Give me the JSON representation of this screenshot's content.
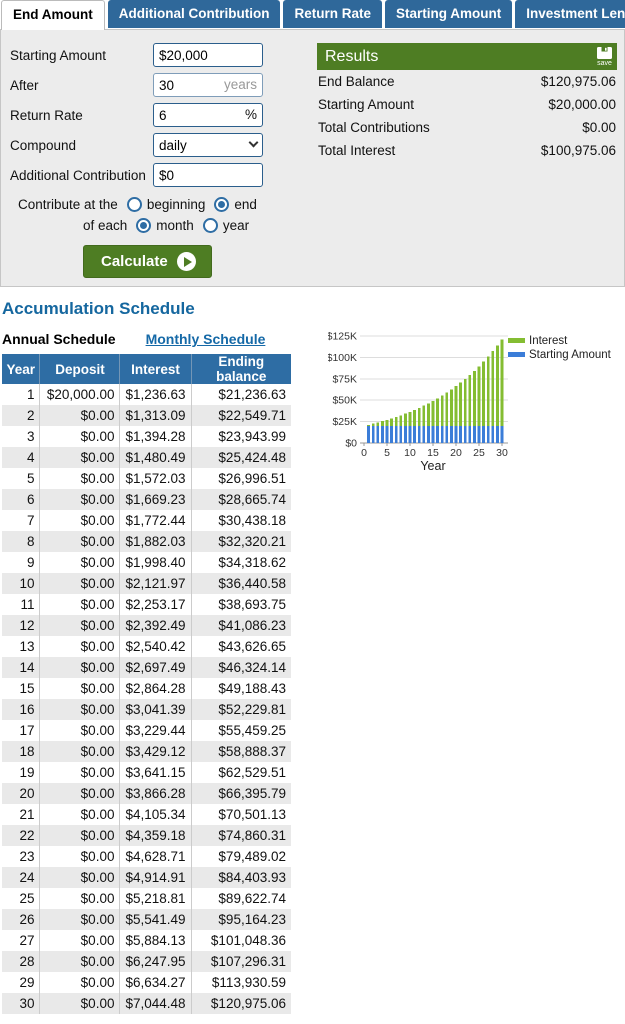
{
  "colors": {
    "tab_blue": "#2f689a",
    "header_blue": "#2e6da4",
    "green": "#4e7d23",
    "link_blue": "#1569a7",
    "bar_blue": "#3b7dd8",
    "bar_green": "#84bd32"
  },
  "tabs": [
    {
      "label": "End Amount",
      "active": true
    },
    {
      "label": "Additional Contribution",
      "active": false
    },
    {
      "label": "Return Rate",
      "active": false
    },
    {
      "label": "Starting Amount",
      "active": false
    },
    {
      "label": "Investment Length",
      "active": false
    }
  ],
  "form": {
    "fields": [
      {
        "label": "Starting Amount",
        "value": "$20,000",
        "suffix": ""
      },
      {
        "label": "After",
        "value": "30",
        "suffix": "years"
      },
      {
        "label": "Return Rate",
        "value": "6",
        "suffix": "%"
      },
      {
        "label": "Compound",
        "value": "daily"
      },
      {
        "label": "Additional Contribution",
        "value": "$0",
        "suffix": ""
      }
    ],
    "contribute_prefix": "Contribute at the",
    "option_beginning": "beginning",
    "option_end": "end",
    "of_each": "of each",
    "option_month": "month",
    "option_year": "year",
    "selected_timing": "end",
    "selected_frequency": "month",
    "calculate_label": "Calculate"
  },
  "results": {
    "title": "Results",
    "save_label": "save",
    "rows": [
      {
        "label": "End Balance",
        "value": "$120,975.06"
      },
      {
        "label": "Starting Amount",
        "value": "$20,000.00"
      },
      {
        "label": "Total Contributions",
        "value": "$0.00"
      },
      {
        "label": "Total Interest",
        "value": "$100,975.06"
      }
    ]
  },
  "schedule": {
    "title": "Accumulation Schedule",
    "annual_label": "Annual Schedule",
    "monthly_label": "Monthly Schedule",
    "columns": [
      "Year",
      "Deposit",
      "Interest",
      "Ending balance"
    ],
    "rows": [
      [
        "1",
        "$20,000.00",
        "$1,236.63",
        "$21,236.63"
      ],
      [
        "2",
        "$0.00",
        "$1,313.09",
        "$22,549.71"
      ],
      [
        "3",
        "$0.00",
        "$1,394.28",
        "$23,943.99"
      ],
      [
        "4",
        "$0.00",
        "$1,480.49",
        "$25,424.48"
      ],
      [
        "5",
        "$0.00",
        "$1,572.03",
        "$26,996.51"
      ],
      [
        "6",
        "$0.00",
        "$1,669.23",
        "$28,665.74"
      ],
      [
        "7",
        "$0.00",
        "$1,772.44",
        "$30,438.18"
      ],
      [
        "8",
        "$0.00",
        "$1,882.03",
        "$32,320.21"
      ],
      [
        "9",
        "$0.00",
        "$1,998.40",
        "$34,318.62"
      ],
      [
        "10",
        "$0.00",
        "$2,121.97",
        "$36,440.58"
      ],
      [
        "11",
        "$0.00",
        "$2,253.17",
        "$38,693.75"
      ],
      [
        "12",
        "$0.00",
        "$2,392.49",
        "$41,086.23"
      ],
      [
        "13",
        "$0.00",
        "$2,540.42",
        "$43,626.65"
      ],
      [
        "14",
        "$0.00",
        "$2,697.49",
        "$46,324.14"
      ],
      [
        "15",
        "$0.00",
        "$2,864.28",
        "$49,188.43"
      ],
      [
        "16",
        "$0.00",
        "$3,041.39",
        "$52,229.81"
      ],
      [
        "17",
        "$0.00",
        "$3,229.44",
        "$55,459.25"
      ],
      [
        "18",
        "$0.00",
        "$3,429.12",
        "$58,888.37"
      ],
      [
        "19",
        "$0.00",
        "$3,641.15",
        "$62,529.51"
      ],
      [
        "20",
        "$0.00",
        "$3,866.28",
        "$66,395.79"
      ],
      [
        "21",
        "$0.00",
        "$4,105.34",
        "$70,501.13"
      ],
      [
        "22",
        "$0.00",
        "$4,359.18",
        "$74,860.31"
      ],
      [
        "23",
        "$0.00",
        "$4,628.71",
        "$79,489.02"
      ],
      [
        "24",
        "$0.00",
        "$4,914.91",
        "$84,403.93"
      ],
      [
        "25",
        "$0.00",
        "$5,218.81",
        "$89,622.74"
      ],
      [
        "26",
        "$0.00",
        "$5,541.49",
        "$95,164.23"
      ],
      [
        "27",
        "$0.00",
        "$5,884.13",
        "$101,048.36"
      ],
      [
        "28",
        "$0.00",
        "$6,247.95",
        "$107,296.31"
      ],
      [
        "29",
        "$0.00",
        "$6,634.27",
        "$113,930.59"
      ],
      [
        "30",
        "$0.00",
        "$7,044.48",
        "$120,975.06"
      ]
    ]
  },
  "chart_data": {
    "type": "bar",
    "stacked": true,
    "x": [
      1,
      2,
      3,
      4,
      5,
      6,
      7,
      8,
      9,
      10,
      11,
      12,
      13,
      14,
      15,
      16,
      17,
      18,
      19,
      20,
      21,
      22,
      23,
      24,
      25,
      26,
      27,
      28,
      29,
      30
    ],
    "series": [
      {
        "name": "Starting Amount",
        "color": "#3b7dd8",
        "values": [
          20000,
          20000,
          20000,
          20000,
          20000,
          20000,
          20000,
          20000,
          20000,
          20000,
          20000,
          20000,
          20000,
          20000,
          20000,
          20000,
          20000,
          20000,
          20000,
          20000,
          20000,
          20000,
          20000,
          20000,
          20000,
          20000,
          20000,
          20000,
          20000,
          20000
        ]
      },
      {
        "name": "Interest",
        "color": "#84bd32",
        "values": [
          1236.63,
          2549.71,
          3943.99,
          5424.48,
          6996.51,
          8665.74,
          10438.18,
          12320.21,
          14318.62,
          16440.58,
          18693.75,
          21086.23,
          23626.65,
          26324.14,
          29188.43,
          32229.81,
          35459.25,
          38888.37,
          42529.51,
          46395.79,
          50501.13,
          54860.31,
          59489.02,
          64403.93,
          69622.74,
          75164.23,
          81048.36,
          87296.31,
          93930.59,
          100975.06
        ]
      }
    ],
    "xlabel": "Year",
    "xticks": [
      0,
      5,
      10,
      15,
      20,
      25,
      30
    ],
    "yticks": [
      "$0",
      "$25K",
      "$50K",
      "$75K",
      "$100K",
      "$125K"
    ],
    "ylim": [
      0,
      125000
    ],
    "grid": true,
    "legend_position": "top-right"
  }
}
